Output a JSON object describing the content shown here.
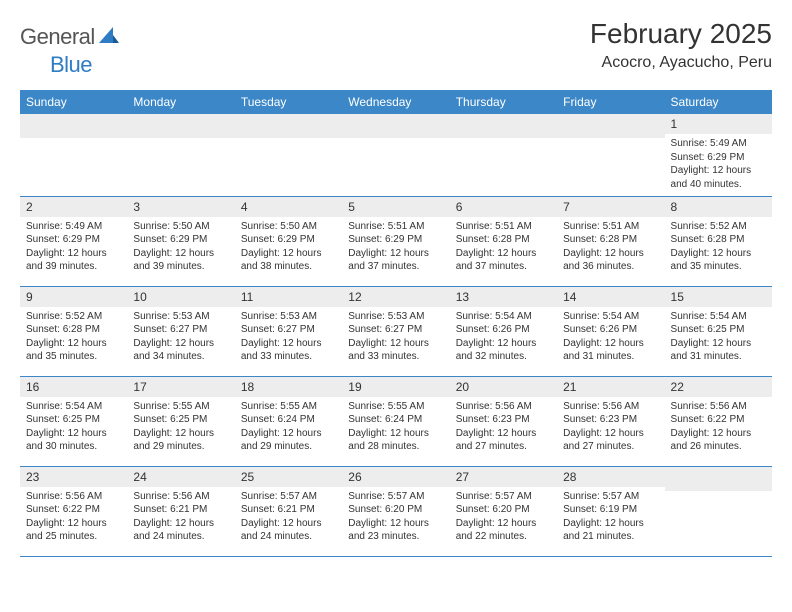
{
  "logo": {
    "text1": "General",
    "text2": "Blue"
  },
  "title": "February 2025",
  "location": "Acocro, Ayacucho, Peru",
  "day_headers": [
    "Sunday",
    "Monday",
    "Tuesday",
    "Wednesday",
    "Thursday",
    "Friday",
    "Saturday"
  ],
  "colors": {
    "header_bg": "#3b87c8",
    "header_fg": "#ffffff",
    "daynum_bg": "#ededed",
    "row_border": "#3b87c8",
    "logo_gray": "#555555",
    "logo_blue": "#2f7cc4"
  },
  "weeks": [
    [
      null,
      null,
      null,
      null,
      null,
      null,
      {
        "n": "1",
        "sr": "Sunrise: 5:49 AM",
        "ss": "Sunset: 6:29 PM",
        "dl1": "Daylight: 12 hours",
        "dl2": "and 40 minutes."
      }
    ],
    [
      {
        "n": "2",
        "sr": "Sunrise: 5:49 AM",
        "ss": "Sunset: 6:29 PM",
        "dl1": "Daylight: 12 hours",
        "dl2": "and 39 minutes."
      },
      {
        "n": "3",
        "sr": "Sunrise: 5:50 AM",
        "ss": "Sunset: 6:29 PM",
        "dl1": "Daylight: 12 hours",
        "dl2": "and 39 minutes."
      },
      {
        "n": "4",
        "sr": "Sunrise: 5:50 AM",
        "ss": "Sunset: 6:29 PM",
        "dl1": "Daylight: 12 hours",
        "dl2": "and 38 minutes."
      },
      {
        "n": "5",
        "sr": "Sunrise: 5:51 AM",
        "ss": "Sunset: 6:29 PM",
        "dl1": "Daylight: 12 hours",
        "dl2": "and 37 minutes."
      },
      {
        "n": "6",
        "sr": "Sunrise: 5:51 AM",
        "ss": "Sunset: 6:28 PM",
        "dl1": "Daylight: 12 hours",
        "dl2": "and 37 minutes."
      },
      {
        "n": "7",
        "sr": "Sunrise: 5:51 AM",
        "ss": "Sunset: 6:28 PM",
        "dl1": "Daylight: 12 hours",
        "dl2": "and 36 minutes."
      },
      {
        "n": "8",
        "sr": "Sunrise: 5:52 AM",
        "ss": "Sunset: 6:28 PM",
        "dl1": "Daylight: 12 hours",
        "dl2": "and 35 minutes."
      }
    ],
    [
      {
        "n": "9",
        "sr": "Sunrise: 5:52 AM",
        "ss": "Sunset: 6:28 PM",
        "dl1": "Daylight: 12 hours",
        "dl2": "and 35 minutes."
      },
      {
        "n": "10",
        "sr": "Sunrise: 5:53 AM",
        "ss": "Sunset: 6:27 PM",
        "dl1": "Daylight: 12 hours",
        "dl2": "and 34 minutes."
      },
      {
        "n": "11",
        "sr": "Sunrise: 5:53 AM",
        "ss": "Sunset: 6:27 PM",
        "dl1": "Daylight: 12 hours",
        "dl2": "and 33 minutes."
      },
      {
        "n": "12",
        "sr": "Sunrise: 5:53 AM",
        "ss": "Sunset: 6:27 PM",
        "dl1": "Daylight: 12 hours",
        "dl2": "and 33 minutes."
      },
      {
        "n": "13",
        "sr": "Sunrise: 5:54 AM",
        "ss": "Sunset: 6:26 PM",
        "dl1": "Daylight: 12 hours",
        "dl2": "and 32 minutes."
      },
      {
        "n": "14",
        "sr": "Sunrise: 5:54 AM",
        "ss": "Sunset: 6:26 PM",
        "dl1": "Daylight: 12 hours",
        "dl2": "and 31 minutes."
      },
      {
        "n": "15",
        "sr": "Sunrise: 5:54 AM",
        "ss": "Sunset: 6:25 PM",
        "dl1": "Daylight: 12 hours",
        "dl2": "and 31 minutes."
      }
    ],
    [
      {
        "n": "16",
        "sr": "Sunrise: 5:54 AM",
        "ss": "Sunset: 6:25 PM",
        "dl1": "Daylight: 12 hours",
        "dl2": "and 30 minutes."
      },
      {
        "n": "17",
        "sr": "Sunrise: 5:55 AM",
        "ss": "Sunset: 6:25 PM",
        "dl1": "Daylight: 12 hours",
        "dl2": "and 29 minutes."
      },
      {
        "n": "18",
        "sr": "Sunrise: 5:55 AM",
        "ss": "Sunset: 6:24 PM",
        "dl1": "Daylight: 12 hours",
        "dl2": "and 29 minutes."
      },
      {
        "n": "19",
        "sr": "Sunrise: 5:55 AM",
        "ss": "Sunset: 6:24 PM",
        "dl1": "Daylight: 12 hours",
        "dl2": "and 28 minutes."
      },
      {
        "n": "20",
        "sr": "Sunrise: 5:56 AM",
        "ss": "Sunset: 6:23 PM",
        "dl1": "Daylight: 12 hours",
        "dl2": "and 27 minutes."
      },
      {
        "n": "21",
        "sr": "Sunrise: 5:56 AM",
        "ss": "Sunset: 6:23 PM",
        "dl1": "Daylight: 12 hours",
        "dl2": "and 27 minutes."
      },
      {
        "n": "22",
        "sr": "Sunrise: 5:56 AM",
        "ss": "Sunset: 6:22 PM",
        "dl1": "Daylight: 12 hours",
        "dl2": "and 26 minutes."
      }
    ],
    [
      {
        "n": "23",
        "sr": "Sunrise: 5:56 AM",
        "ss": "Sunset: 6:22 PM",
        "dl1": "Daylight: 12 hours",
        "dl2": "and 25 minutes."
      },
      {
        "n": "24",
        "sr": "Sunrise: 5:56 AM",
        "ss": "Sunset: 6:21 PM",
        "dl1": "Daylight: 12 hours",
        "dl2": "and 24 minutes."
      },
      {
        "n": "25",
        "sr": "Sunrise: 5:57 AM",
        "ss": "Sunset: 6:21 PM",
        "dl1": "Daylight: 12 hours",
        "dl2": "and 24 minutes."
      },
      {
        "n": "26",
        "sr": "Sunrise: 5:57 AM",
        "ss": "Sunset: 6:20 PM",
        "dl1": "Daylight: 12 hours",
        "dl2": "and 23 minutes."
      },
      {
        "n": "27",
        "sr": "Sunrise: 5:57 AM",
        "ss": "Sunset: 6:20 PM",
        "dl1": "Daylight: 12 hours",
        "dl2": "and 22 minutes."
      },
      {
        "n": "28",
        "sr": "Sunrise: 5:57 AM",
        "ss": "Sunset: 6:19 PM",
        "dl1": "Daylight: 12 hours",
        "dl2": "and 21 minutes."
      },
      null
    ]
  ]
}
